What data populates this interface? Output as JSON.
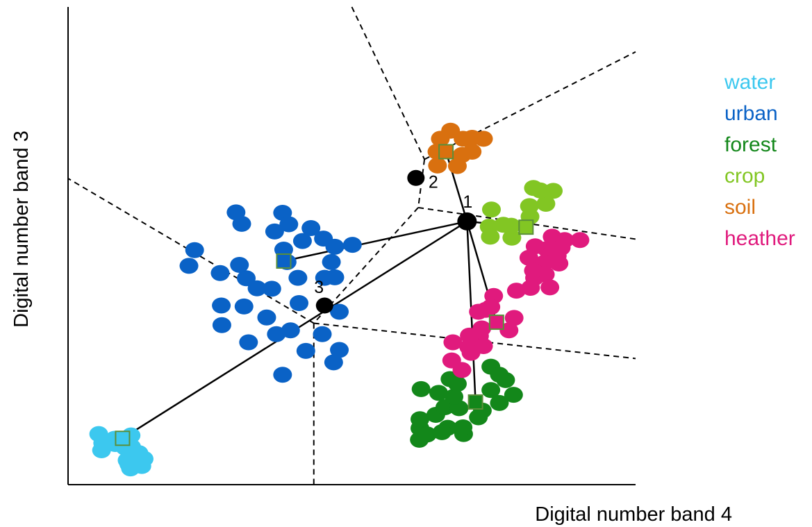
{
  "chart_data": {
    "type": "scatter",
    "xlabel": "Digital number band 4",
    "ylabel": "Digital number band 3",
    "grid": false,
    "legend_position": "right",
    "classes": [
      {
        "name": "water",
        "color": "#3cc8ef",
        "center": [
          96,
          97
        ],
        "points": [
          [
            54,
            106
          ],
          [
            82,
            96
          ],
          [
            111,
            103
          ],
          [
            61,
            87
          ],
          [
            59,
            72
          ],
          [
            83,
            85
          ],
          [
            98,
            87
          ],
          [
            112,
            79
          ],
          [
            100,
            78
          ],
          [
            110,
            64
          ],
          [
            104,
            51
          ],
          [
            107,
            43
          ],
          [
            110,
            34
          ],
          [
            130,
            39
          ],
          [
            134,
            54
          ],
          [
            125,
            66
          ]
        ]
      },
      {
        "name": "urban",
        "color": "#0a62c6",
        "center": [
          380,
          468
        ],
        "points": [
          [
            296,
            570
          ],
          [
            306,
            546
          ],
          [
            378,
            569
          ],
          [
            389,
            545
          ],
          [
            364,
            530
          ],
          [
            428,
            537
          ],
          [
            450,
            515
          ],
          [
            501,
            502
          ],
          [
            470,
            498
          ],
          [
            380,
            492
          ],
          [
            413,
            510
          ],
          [
            470,
            434
          ],
          [
            333,
            411
          ],
          [
            314,
            432
          ],
          [
            386,
            466
          ],
          [
            464,
            466
          ],
          [
            452,
            433
          ],
          [
            405,
            433
          ],
          [
            359,
            410
          ],
          [
            268,
            443
          ],
          [
            213,
            458
          ],
          [
            223,
            491
          ],
          [
            302,
            460
          ],
          [
            310,
            373
          ],
          [
            270,
            375
          ],
          [
            271,
            334
          ],
          [
            318,
            298
          ],
          [
            392,
            323
          ],
          [
            419,
            280
          ],
          [
            448,
            315
          ],
          [
            367,
            315
          ],
          [
            350,
            350
          ],
          [
            468,
            256
          ],
          [
            407,
            380
          ],
          [
            478,
            362
          ],
          [
            478,
            282
          ],
          [
            378,
            230
          ]
        ]
      },
      {
        "name": "forest",
        "color": "#13871a",
        "center": [
          718,
          173
        ],
        "points": [
          [
            745,
            247
          ],
          [
            771,
            219
          ],
          [
            785,
            188
          ],
          [
            745,
            198
          ],
          [
            760,
            171
          ],
          [
            730,
            155
          ],
          [
            723,
            141
          ],
          [
            697,
            106
          ],
          [
            669,
            119
          ],
          [
            619,
            94
          ],
          [
            620,
            118
          ],
          [
            620,
            137
          ],
          [
            633,
            105
          ],
          [
            659,
            110
          ],
          [
            648,
            146
          ],
          [
            664,
            162
          ],
          [
            689,
            160
          ],
          [
            696,
            120
          ],
          [
            622,
            200
          ],
          [
            653,
            192
          ],
          [
            680,
            184
          ],
          [
            673,
            221
          ],
          [
            686,
            211
          ],
          [
            760,
            230
          ]
        ]
      },
      {
        "name": "crop",
        "color": "#82c623",
        "center": [
          807,
          539
        ],
        "points": [
          [
            782,
            517
          ],
          [
            781,
            542
          ],
          [
            742,
            540
          ],
          [
            767,
            544
          ],
          [
            744,
            519
          ],
          [
            746,
            576
          ],
          [
            814,
            561
          ],
          [
            855,
            615
          ],
          [
            820,
            621
          ],
          [
            813,
            583
          ],
          [
            842,
            588
          ],
          [
            832,
            616
          ]
        ]
      },
      {
        "name": "heather",
        "color": "#e01a7d",
        "center": [
          755,
          340
        ],
        "points": [
          [
            853,
            519
          ],
          [
            875,
            512
          ],
          [
            902,
            512
          ],
          [
            869,
            496
          ],
          [
            843,
            493
          ],
          [
            823,
            499
          ],
          [
            812,
            475
          ],
          [
            865,
            463
          ],
          [
            862,
            479
          ],
          [
            840,
            465
          ],
          [
            841,
            440
          ],
          [
            822,
            433
          ],
          [
            820,
            448
          ],
          [
            849,
            413
          ],
          [
            815,
            412
          ],
          [
            790,
            406
          ],
          [
            750,
            395
          ],
          [
            736,
            366
          ],
          [
            786,
            349
          ],
          [
            777,
            323
          ],
          [
            723,
            362
          ],
          [
            745,
            372
          ],
          [
            725,
            311
          ],
          [
            694,
            240
          ],
          [
            676,
            260
          ],
          [
            678,
            298
          ],
          [
            719,
            289
          ],
          [
            732,
            290
          ],
          [
            729,
            327
          ],
          [
            707,
            312
          ],
          [
            706,
            288
          ],
          [
            710,
            276
          ]
        ]
      },
      {
        "name": "soil",
        "color": "#d9700f",
        "center": [
          666,
          697
        ],
        "points": [
          [
            674,
            741
          ],
          [
            656,
            724
          ],
          [
            696,
            724
          ],
          [
            650,
            697
          ],
          [
            694,
            690
          ],
          [
            651,
            668
          ],
          [
            686,
            667
          ],
          [
            712,
            726
          ],
          [
            712,
            697
          ],
          [
            732,
            724
          ]
        ]
      }
    ],
    "unknown_points": [
      {
        "label": "1",
        "x": 703,
        "y": 551,
        "class": "crop"
      },
      {
        "label": "2",
        "x": 613,
        "y": 642,
        "class": "urban"
      },
      {
        "label": "3",
        "x": 452,
        "y": 375,
        "class": "water"
      }
    ],
    "legend": [
      "water",
      "urban",
      "forest",
      "crop",
      "soil",
      "heather"
    ]
  }
}
